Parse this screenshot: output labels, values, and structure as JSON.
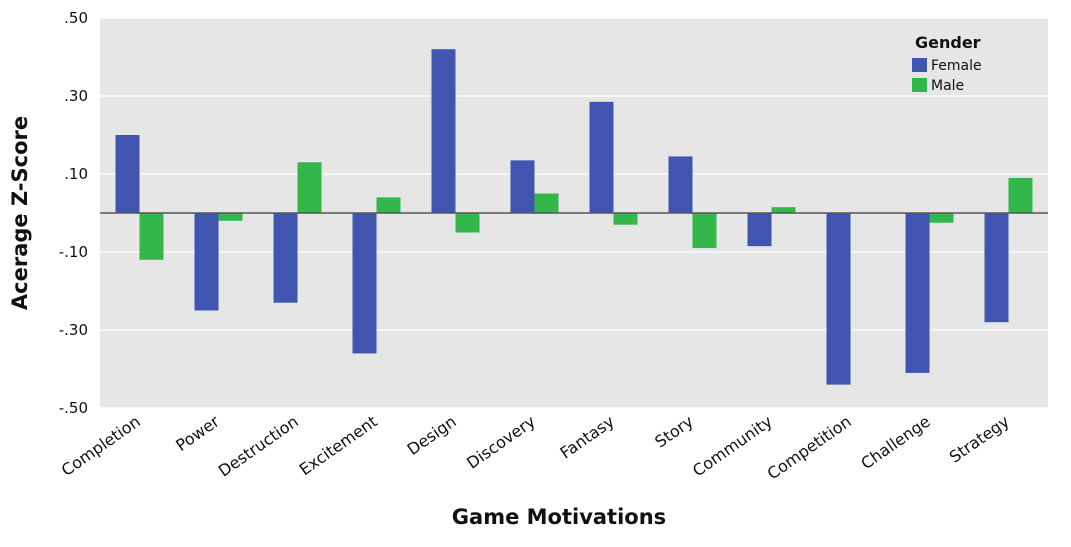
{
  "chart_data": {
    "type": "bar",
    "title": "",
    "xlabel": "Game Motivations",
    "ylabel": "Acerage Z-Score",
    "ylim": [
      -0.5,
      0.5
    ],
    "yticks": [
      0.5,
      0.3,
      0.1,
      -0.1,
      -0.3,
      -0.5
    ],
    "ytick_labels": [
      ".50",
      ".30",
      ".10",
      "-.10",
      "-.30",
      "-.50"
    ],
    "grid": true,
    "legend": {
      "title": "Gender",
      "position": "top-right"
    },
    "categories": [
      "Completion",
      "Power",
      "Destruction",
      "Excitement",
      "Design",
      "Discovery",
      "Fantasy",
      "Story",
      "Community",
      "Competition",
      "Challenge",
      "Strategy"
    ],
    "series": [
      {
        "name": "Female",
        "color": "#3f55b0",
        "values": [
          0.2,
          -0.25,
          -0.23,
          -0.36,
          0.42,
          0.135,
          0.285,
          0.145,
          -0.085,
          -0.44,
          -0.41,
          -0.28
        ]
      },
      {
        "name": "Male",
        "color": "#33b74a",
        "values": [
          -0.12,
          -0.02,
          0.13,
          0.04,
          -0.05,
          0.05,
          -0.03,
          -0.09,
          0.015,
          0.0,
          -0.025,
          0.09
        ]
      }
    ]
  },
  "colors": {
    "plot_background": "#e6e6e6",
    "gridline": "#ffffff",
    "zero_line": "#555555"
  }
}
